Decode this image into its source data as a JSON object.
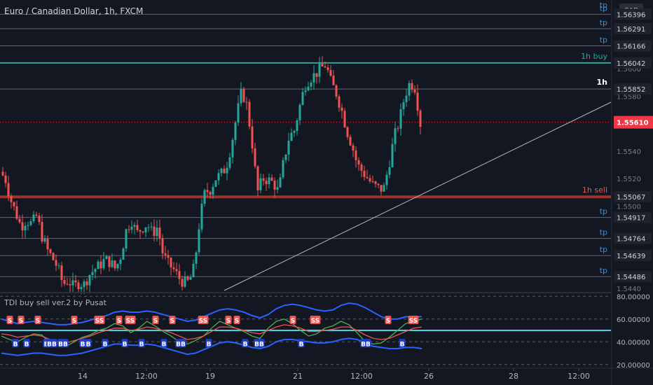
{
  "header": {
    "title": "Euro / Canadian Dollar, 1h, FXCM"
  },
  "indicator": {
    "title": "TDI buy sell ver.2 by Pusat"
  },
  "colors": {
    "background": "#131722",
    "bull": "#26a69a",
    "bear": "#ef5350",
    "buy_line": "#26a69a",
    "sell_line": "#b23a30",
    "price_tag": "#f23645",
    "tp": "#2196f3",
    "band": "#2962ff",
    "cyan": "#4dd0e1"
  },
  "chart_data": [
    {
      "type": "candlestick",
      "title": "Euro / Canadian Dollar, 1h, FXCM",
      "currency": "CAD",
      "ylim": [
        1.5438,
        1.565
      ],
      "price_ticks": [
        1.56,
        1.558,
        1.554,
        1.552,
        1.55,
        1.5463,
        1.544
      ],
      "levels": [
        {
          "price": 1.56396,
          "label": "1.56396",
          "tag": "tp",
          "kind": "tp"
        },
        {
          "price": 1.56291,
          "label": "1.56291",
          "tag": "tp",
          "kind": "tp"
        },
        {
          "price": 1.56166,
          "label": "1.56166",
          "tag": "tp",
          "kind": "tp"
        },
        {
          "price": 1.56042,
          "label": "1.56042",
          "tag": "1h buy",
          "kind": "buy"
        },
        {
          "price": 1.55852,
          "label": "1.55852",
          "tag": "1h",
          "kind": "tf"
        },
        {
          "price": 1.55067,
          "label": "1.55067",
          "tag": "1h sell",
          "kind": "sell"
        },
        {
          "price": 1.54917,
          "label": "1.54917",
          "tag": "tp",
          "kind": "tp"
        },
        {
          "price": 1.54764,
          "label": "1.54764",
          "tag": "tp",
          "kind": "tp"
        },
        {
          "price": 1.54639,
          "label": "1.54639",
          "tag": "tp",
          "kind": "tp"
        },
        {
          "price": 1.54486,
          "label": "1.54486",
          "tag": "tp",
          "kind": "tp"
        }
      ],
      "top_tag": "tp",
      "last_price": {
        "value": 1.5561,
        "label": "1.55610"
      },
      "price_path": [
        1.5525,
        1.552,
        1.5505,
        1.5495,
        1.5485,
        1.549,
        1.5487,
        1.5493,
        1.5478,
        1.5468,
        1.5462,
        1.5455,
        1.5443,
        1.5446,
        1.5441,
        1.5444,
        1.5443,
        1.545,
        1.5454,
        1.5457,
        1.5461,
        1.5459,
        1.5454,
        1.5464,
        1.5482,
        1.549,
        1.548,
        1.5484,
        1.5487,
        1.548,
        1.5485,
        1.5465,
        1.5458,
        1.5454,
        1.5448,
        1.5444,
        1.5445,
        1.5456,
        1.549,
        1.551,
        1.5512,
        1.552,
        1.5523,
        1.5528,
        1.5544,
        1.5565,
        1.5584,
        1.5573,
        1.5545,
        1.551,
        1.552,
        1.5519,
        1.5517,
        1.551,
        1.5533,
        1.555,
        1.5555,
        1.5572,
        1.5588,
        1.5593,
        1.5596,
        1.56,
        1.5603,
        1.559,
        1.5582,
        1.557,
        1.5555,
        1.5544,
        1.553,
        1.5525,
        1.552,
        1.5515,
        1.5513,
        1.5512,
        1.553,
        1.555,
        1.5562,
        1.558,
        1.559,
        1.5586,
        1.556
      ]
    },
    {
      "type": "line",
      "title": "TDI buy sell ver.2 by Pusat",
      "ylim": [
        18,
        82
      ],
      "y_ticks": [
        80,
        60,
        40,
        20
      ],
      "y_tick_labels": [
        "80.00000",
        "60.00000",
        "40.00000",
        "20.00000"
      ],
      "x_ticks": [
        "14",
        "12:00",
        "19",
        "21",
        "12:00",
        "26",
        "28",
        "12:00"
      ],
      "series": [
        {
          "values": [
            45,
            42,
            40,
            44,
            47,
            46,
            39,
            38,
            36,
            40,
            44,
            46,
            50,
            52,
            56,
            54,
            48,
            52,
            58,
            54,
            49,
            45,
            40,
            38,
            41,
            45,
            52,
            58,
            55,
            52,
            49,
            45,
            43,
            52,
            58,
            60,
            56,
            50,
            45,
            47,
            52,
            54,
            58,
            55,
            48,
            40,
            38,
            39,
            44,
            50,
            56,
            58,
            60
          ]
        },
        {
          "values": [
            47,
            46,
            44,
            45,
            46,
            45,
            42,
            40,
            39,
            41,
            43,
            45,
            48,
            50,
            52,
            52,
            50,
            51,
            53,
            52,
            50,
            48,
            45,
            42,
            43,
            45,
            49,
            53,
            53,
            52,
            50,
            48,
            47,
            50,
            53,
            55,
            54,
            52,
            49,
            49,
            50,
            51,
            53,
            53,
            50,
            46,
            43,
            42,
            43,
            46,
            49,
            52,
            53
          ]
        },
        {
          "values": [
            60,
            58,
            56,
            57,
            58,
            57,
            56,
            55,
            55,
            56,
            57,
            59,
            61,
            63,
            66,
            67,
            66,
            66,
            67,
            66,
            64,
            62,
            60,
            58,
            59,
            62,
            65,
            68,
            69,
            68,
            66,
            63,
            61,
            64,
            69,
            72,
            73,
            72,
            70,
            68,
            67,
            68,
            72,
            74,
            73,
            70,
            66,
            62,
            60,
            60,
            62,
            62,
            62
          ]
        },
        {
          "values": [
            30,
            29,
            28,
            29,
            30,
            30,
            29,
            28,
            28,
            29,
            30,
            32,
            34,
            36,
            38,
            38,
            37,
            37,
            38,
            37,
            35,
            33,
            31,
            29,
            30,
            33,
            36,
            39,
            40,
            39,
            37,
            35,
            34,
            36,
            40,
            42,
            42,
            41,
            40,
            39,
            39,
            40,
            42,
            43,
            42,
            39,
            36,
            35,
            34,
            34,
            35,
            35,
            34
          ]
        }
      ],
      "signals": [
        {
          "at": 0.03,
          "label": "S",
          "kind": "sell"
        },
        {
          "at": 0.07,
          "label": "S",
          "kind": "sell"
        },
        {
          "at": 0.05,
          "label": "B",
          "kind": "buy"
        },
        {
          "at": 0.09,
          "label": "B",
          "kind": "buy"
        },
        {
          "at": 0.13,
          "label": "S",
          "kind": "sell"
        },
        {
          "at": 0.16,
          "label": "B",
          "kind": "buy"
        },
        {
          "at": 0.18,
          "label": "BB",
          "kind": "buy"
        },
        {
          "at": 0.22,
          "label": "BB",
          "kind": "buy"
        },
        {
          "at": 0.26,
          "label": "S",
          "kind": "sell"
        },
        {
          "at": 0.29,
          "label": "B",
          "kind": "buy"
        },
        {
          "at": 0.31,
          "label": "B",
          "kind": "buy"
        },
        {
          "at": 0.35,
          "label": "SS",
          "kind": "sell"
        },
        {
          "at": 0.37,
          "label": "B",
          "kind": "buy"
        },
        {
          "at": 0.42,
          "label": "S",
          "kind": "sell"
        },
        {
          "at": 0.44,
          "label": "B",
          "kind": "buy"
        },
        {
          "at": 0.46,
          "label": "SS",
          "kind": "sell"
        },
        {
          "at": 0.5,
          "label": "B",
          "kind": "buy"
        },
        {
          "at": 0.55,
          "label": "S",
          "kind": "sell"
        },
        {
          "at": 0.58,
          "label": "B",
          "kind": "buy"
        },
        {
          "at": 0.61,
          "label": "S",
          "kind": "sell"
        },
        {
          "at": 0.64,
          "label": "BB",
          "kind": "buy"
        },
        {
          "at": 0.72,
          "label": "SS",
          "kind": "sell"
        },
        {
          "at": 0.74,
          "label": "B",
          "kind": "buy"
        },
        {
          "at": 0.81,
          "label": "S",
          "kind": "sell"
        },
        {
          "at": 0.84,
          "label": "S",
          "kind": "sell"
        },
        {
          "at": 0.87,
          "label": "B",
          "kind": "buy"
        },
        {
          "at": 0.92,
          "label": "BB",
          "kind": "buy"
        },
        {
          "at": 1.04,
          "label": "S",
          "kind": "sell"
        },
        {
          "at": 1.07,
          "label": "B",
          "kind": "buy"
        },
        {
          "at": 1.12,
          "label": "SS",
          "kind": "sell"
        },
        {
          "at": 1.3,
          "label": "BB",
          "kind": "buy"
        },
        {
          "at": 1.38,
          "label": "S",
          "kind": "sell"
        },
        {
          "at": 1.43,
          "label": "B",
          "kind": "buy"
        },
        {
          "at": 1.47,
          "label": "SS",
          "kind": "sell"
        }
      ]
    }
  ]
}
